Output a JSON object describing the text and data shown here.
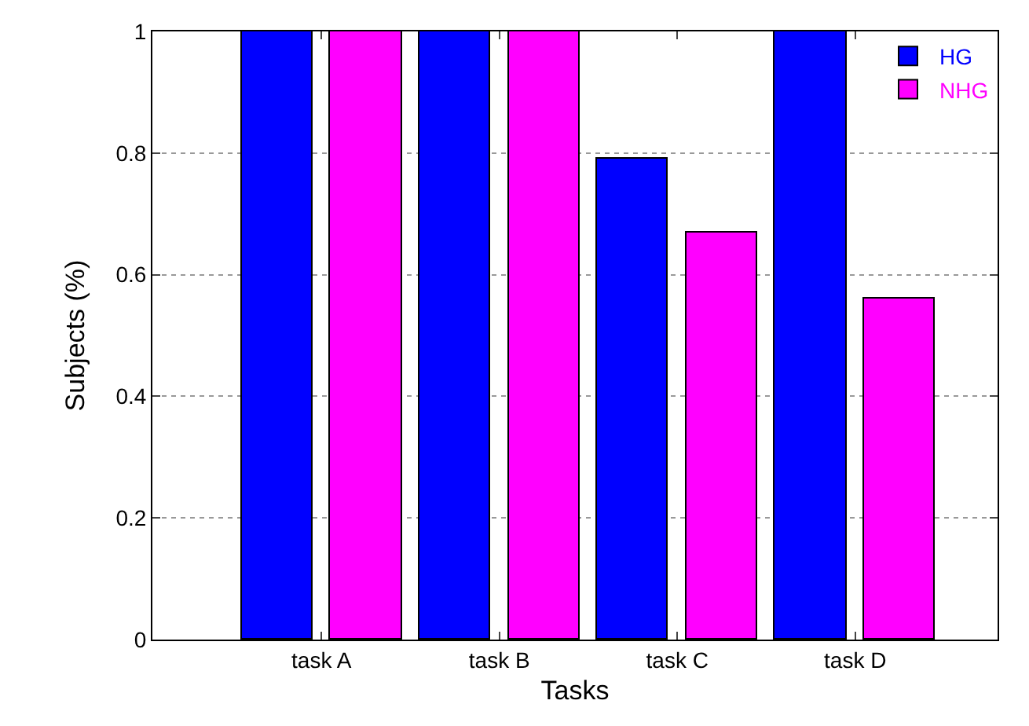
{
  "chart_data": {
    "type": "bar",
    "xlabel": "Tasks",
    "ylabel": "Subjects (%)",
    "categories": [
      "task A",
      "task B",
      "task C",
      "task D"
    ],
    "series": [
      {
        "name": "HG",
        "color": "#0000ff",
        "values": [
          1,
          1,
          0.79,
          1
        ]
      },
      {
        "name": "NHG",
        "color": "#ff00ff",
        "values": [
          1,
          1,
          0.67,
          0.56
        ]
      }
    ],
    "ylim": [
      0,
      1
    ],
    "yticks": [
      0,
      0.2,
      0.4,
      0.6,
      0.8,
      1
    ],
    "grid": "y",
    "legend": "top right"
  }
}
